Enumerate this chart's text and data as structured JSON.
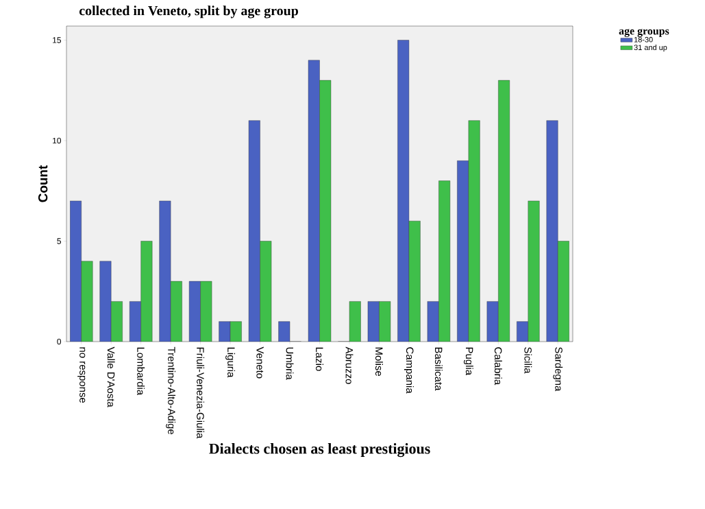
{
  "chart_data": {
    "type": "bar",
    "title": "collected in Veneto, split by age group",
    "xlabel": "Dialects chosen as least prestigious",
    "ylabel": "Count",
    "legend_title": "age groups",
    "categories": [
      "no response",
      "Valle D'Aosta",
      "Lombardia",
      "Trentino-Alto-Adige",
      "Friuli-Venezia-Giulia",
      "Liguria",
      "Veneto",
      "Umbria",
      "Lazio",
      "Abruzzo",
      "Molise",
      "Campania",
      "Basilicata",
      "Puglia",
      "Calabria",
      "Sicilia",
      "Sardegna"
    ],
    "series": [
      {
        "name": "18-30",
        "color": "#4a62c2",
        "values": [
          7,
          4,
          2,
          7,
          3,
          1,
          11,
          1,
          14,
          0,
          2,
          15,
          2,
          9,
          2,
          1,
          11
        ]
      },
      {
        "name": "31 and up",
        "color": "#3fbf4a",
        "values": [
          4,
          2,
          5,
          3,
          3,
          1,
          5,
          0,
          13,
          2,
          2,
          6,
          8,
          11,
          13,
          7,
          5
        ]
      }
    ],
    "ylim": [
      0,
      15.7
    ],
    "yticks": [
      0,
      5,
      10,
      15
    ],
    "grid": false,
    "legend": "top right"
  }
}
